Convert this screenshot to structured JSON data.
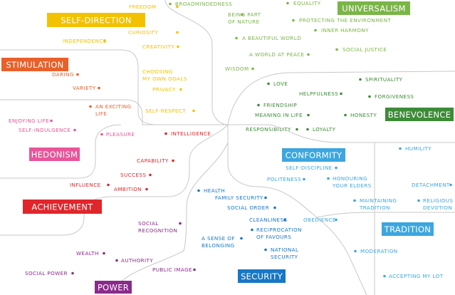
{
  "groups": [
    {
      "title": "SELF-DIRECTION",
      "color": "#f2c200",
      "items": [
        {
          "label": [
            "FREEDOM"
          ]
        },
        {
          "label": [
            "CURIOSITY"
          ]
        },
        {
          "label": [
            "INDEPENDENCE"
          ]
        },
        {
          "label": [
            "CREATIVITY"
          ]
        },
        {
          "label": [
            "CHOOSING",
            "MY OWN GOALS"
          ]
        },
        {
          "label": [
            "PRIVACY"
          ]
        },
        {
          "label": [
            "SELF-RESPECT"
          ]
        }
      ]
    },
    {
      "title": "UNIVERSALISM",
      "color": "#7ab547",
      "items": [
        {
          "label": [
            "BROADMINDEDNESS"
          ]
        },
        {
          "label": [
            "EQUALITY"
          ]
        },
        {
          "label": [
            "BEING PART",
            "OF NATURE"
          ]
        },
        {
          "label": [
            "PROTECTING THE ENVIRONMENT"
          ]
        },
        {
          "label": [
            "INNER HARMONY"
          ]
        },
        {
          "label": [
            "A BEAUTIFUL WORLD"
          ]
        },
        {
          "label": [
            "SOCIAL JUSTICE"
          ]
        },
        {
          "label": [
            "A WORLD AT PEACE"
          ]
        },
        {
          "label": [
            "WISDOM"
          ]
        }
      ]
    },
    {
      "title": "STIMULATION",
      "color": "#e8602a",
      "items": [
        {
          "label": [
            "DARING"
          ]
        },
        {
          "label": [
            "VARIETY"
          ]
        },
        {
          "label": [
            "AN EXCITING",
            "LIFE"
          ]
        }
      ]
    },
    {
      "title": "BENEVOLENCE",
      "color": "#3d8b37",
      "items": [
        {
          "label": [
            "LOVE"
          ]
        },
        {
          "label": [
            "SPIRITUALITY"
          ]
        },
        {
          "label": [
            "HELPFULNESS"
          ]
        },
        {
          "label": [
            "FORGIVENESS"
          ]
        },
        {
          "label": [
            "FRIENDSHIP"
          ]
        },
        {
          "label": [
            "MEANING IN LIFE"
          ]
        },
        {
          "label": [
            "HONESTY"
          ]
        },
        {
          "label": [
            "RESPONSIBILITY"
          ]
        },
        {
          "label": [
            "LOYALTY"
          ]
        }
      ]
    },
    {
      "title": "HEDONISM",
      "color": "#e8559a",
      "items": [
        {
          "label": [
            "ENJOYING LIFE"
          ]
        },
        {
          "label": [
            "SELF-INDULGENCE"
          ]
        },
        {
          "label": [
            "PLEASURE"
          ]
        }
      ]
    },
    {
      "title": "ACHIEVEMENT",
      "color": "#e0262b",
      "items": [
        {
          "label": [
            "INTELLIGENCE"
          ]
        },
        {
          "label": [
            "CAPABILITY"
          ]
        },
        {
          "label": [
            "SUCCESS"
          ]
        },
        {
          "label": [
            "INFLUENCE"
          ]
        },
        {
          "label": [
            "AMBITION"
          ]
        }
      ]
    },
    {
      "title": "CONFORMITY",
      "color": "#3ca6df",
      "items": [
        {
          "label": [
            "SELF-DISCIPLINE"
          ]
        },
        {
          "label": [
            "POLITENESS"
          ]
        },
        {
          "label": [
            "HONOURING",
            "YOUR ELDERS"
          ]
        },
        {
          "label": [
            "OBEDIENCE"
          ]
        }
      ]
    },
    {
      "title": "TRADITION",
      "color": "#3ca6df",
      "items": [
        {
          "label": [
            "HUMILITY"
          ]
        },
        {
          "label": [
            "DETACHMENT"
          ]
        },
        {
          "label": [
            "MAINTAINING",
            "TRADITION"
          ]
        },
        {
          "label": [
            "RELIGIOUS",
            "DEVOTION"
          ]
        },
        {
          "label": [
            "MODERATION"
          ]
        },
        {
          "label": [
            "ACCEPTING MY LOT"
          ]
        }
      ]
    },
    {
      "title": "SECURITY",
      "color": "#1877c4",
      "items": [
        {
          "label": [
            "HEALTH"
          ]
        },
        {
          "label": [
            "FAMILY SECURITY"
          ]
        },
        {
          "label": [
            "SOCIAL ORDER"
          ]
        },
        {
          "label": [
            "CLEANLINESS"
          ]
        },
        {
          "label": [
            "RECIPROCATION",
            "OF FAVOURS"
          ]
        },
        {
          "label": [
            "A SENSE OF",
            "BELONGING"
          ]
        },
        {
          "label": [
            "NATIONAL",
            "SECURITY"
          ]
        }
      ]
    },
    {
      "title": "POWER",
      "color": "#8a2a8a",
      "items": [
        {
          "label": [
            "SOCIAL",
            "RECOGNITION"
          ]
        },
        {
          "label": [
            "WEALTH"
          ]
        },
        {
          "label": [
            "AUTHORITY"
          ]
        },
        {
          "label": [
            "PUBLIC IMAGE"
          ]
        },
        {
          "label": [
            "SOCIAL POWER"
          ]
        }
      ]
    }
  ]
}
